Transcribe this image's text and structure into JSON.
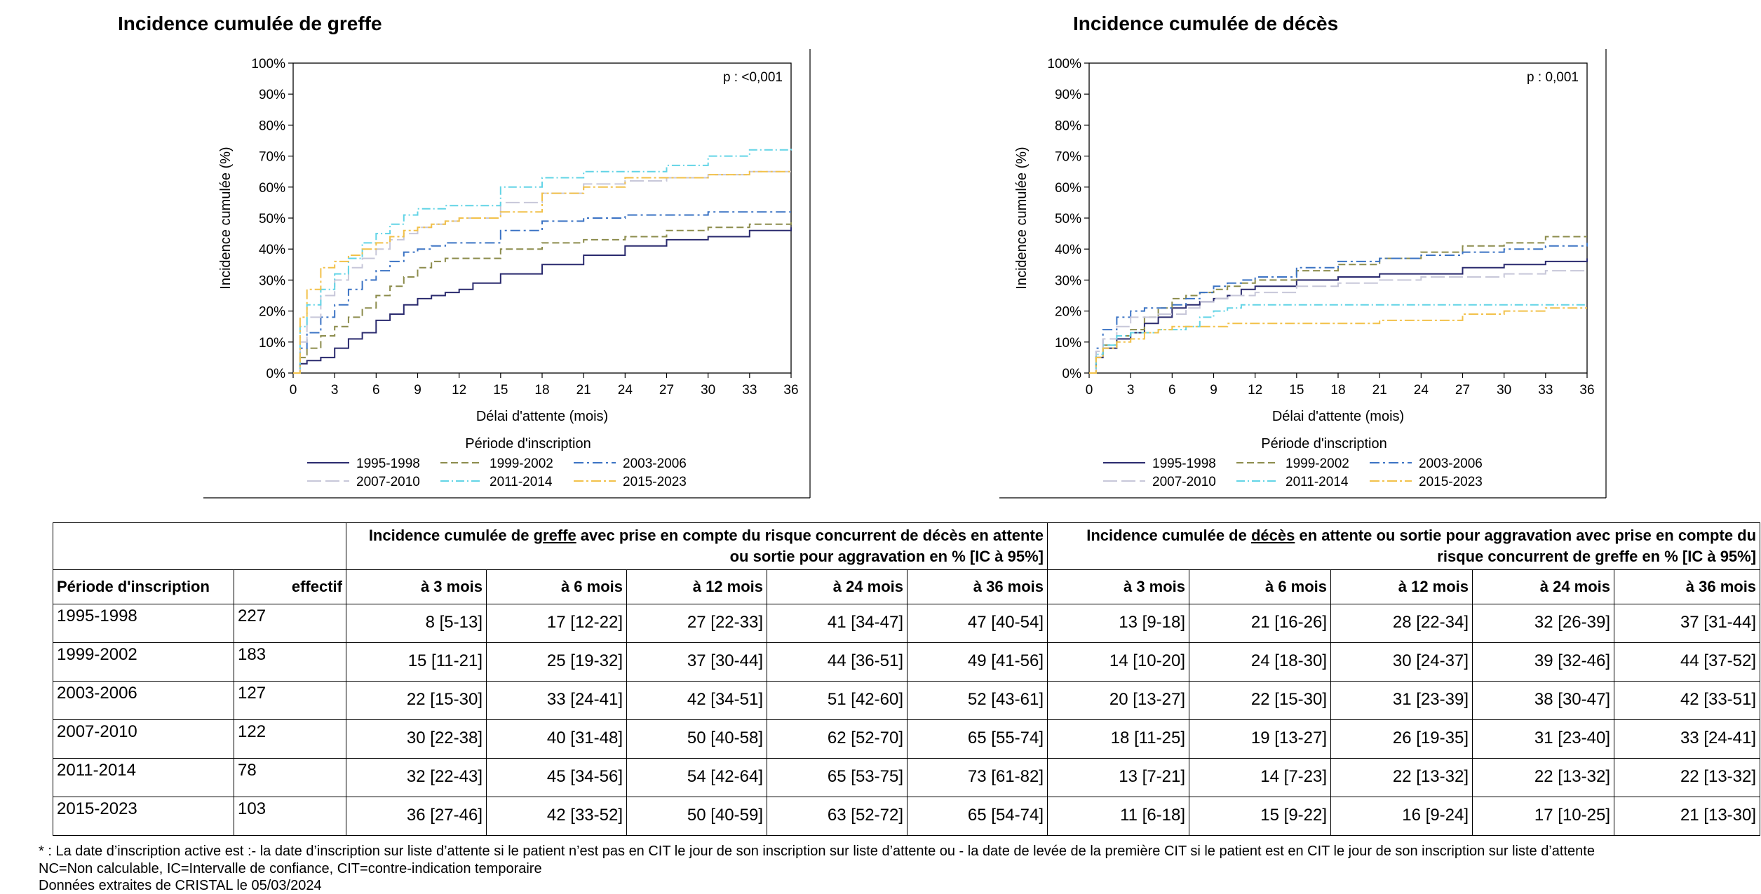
{
  "charts": [
    {
      "title": "Incidence cumulée de greffe",
      "pvalue": "p : <0,001"
    },
    {
      "title": "Incidence cumulée de décès",
      "pvalue": "p : 0,001"
    }
  ],
  "chart_data": [
    {
      "type": "line",
      "title": "Incidence cumulée de greffe",
      "xlabel": "Délai d'attente (mois)",
      "ylabel": "Incidence cumulée (%)",
      "xlim": [
        0,
        36
      ],
      "ylim": [
        0,
        100
      ],
      "x_ticks": [
        "0",
        "3",
        "6",
        "9",
        "12",
        "15",
        "18",
        "21",
        "24",
        "27",
        "30",
        "33",
        "36"
      ],
      "y_ticks": [
        "0%",
        "10%",
        "20%",
        "30%",
        "40%",
        "50%",
        "60%",
        "70%",
        "80%",
        "90%",
        "100%"
      ],
      "legend_title": "Période d'inscription",
      "legend_position": "bottom",
      "grid": false,
      "series": [
        {
          "name": "1995-1998",
          "color": "#2a2a6e",
          "dash": "",
          "x": [
            0,
            0.5,
            1,
            2,
            3,
            4,
            5,
            6,
            7,
            8,
            9,
            10,
            11,
            12,
            13,
            15,
            18,
            21,
            24,
            27,
            30,
            33,
            36
          ],
          "y": [
            0,
            3,
            4,
            5,
            8,
            11,
            13,
            17,
            19,
            22,
            24,
            25,
            26,
            27,
            29,
            32,
            35,
            38,
            41,
            43,
            44,
            46,
            47
          ]
        },
        {
          "name": "1999-2002",
          "color": "#8c8c4c",
          "dash": "10,5",
          "x": [
            0,
            0.5,
            1,
            2,
            3,
            4,
            5,
            6,
            7,
            8,
            9,
            10,
            11,
            12,
            15,
            18,
            21,
            24,
            27,
            30,
            33,
            36
          ],
          "y": [
            0,
            5,
            8,
            12,
            15,
            18,
            21,
            25,
            28,
            31,
            34,
            36,
            37,
            37,
            40,
            42,
            43,
            44,
            46,
            47,
            48,
            49
          ]
        },
        {
          "name": "2003-2006",
          "color": "#3b73c4",
          "dash": "14,5,3,5",
          "x": [
            0,
            0.5,
            1,
            2,
            3,
            4,
            5,
            6,
            7,
            8,
            9,
            10,
            11,
            12,
            15,
            18,
            21,
            24,
            27,
            30,
            33,
            36
          ],
          "y": [
            0,
            8,
            13,
            18,
            22,
            27,
            30,
            33,
            36,
            39,
            40,
            41,
            42,
            42,
            46,
            49,
            50,
            51,
            51,
            52,
            52,
            52
          ]
        },
        {
          "name": "2007-2010",
          "color": "#c7c7d9",
          "dash": "20,6",
          "x": [
            0,
            0.5,
            1,
            2,
            3,
            4,
            5,
            6,
            7,
            8,
            9,
            10,
            11,
            12,
            15,
            18,
            21,
            24,
            27,
            30,
            33,
            36
          ],
          "y": [
            0,
            10,
            18,
            25,
            30,
            34,
            37,
            40,
            43,
            45,
            47,
            48,
            49,
            50,
            55,
            58,
            61,
            62,
            63,
            64,
            65,
            65
          ]
        },
        {
          "name": "2011-2014",
          "color": "#62d4e6",
          "dash": "12,4,2,4",
          "x": [
            0,
            0.5,
            1,
            2,
            3,
            4,
            5,
            6,
            7,
            8,
            9,
            10,
            11,
            12,
            15,
            18,
            21,
            24,
            27,
            30,
            33,
            36
          ],
          "y": [
            0,
            15,
            22,
            27,
            32,
            37,
            42,
            45,
            48,
            51,
            53,
            53,
            54,
            54,
            60,
            63,
            65,
            65,
            67,
            70,
            72,
            73
          ]
        },
        {
          "name": "2015-2023",
          "color": "#f2c14a",
          "dash": "14,4,3,4",
          "x": [
            0,
            0.5,
            1,
            2,
            3,
            4,
            5,
            6,
            7,
            8,
            9,
            10,
            11,
            12,
            15,
            18,
            21,
            24,
            27,
            30,
            33,
            36
          ],
          "y": [
            0,
            18,
            27,
            34,
            36,
            38,
            40,
            42,
            44,
            46,
            47,
            48,
            49,
            50,
            52,
            58,
            60,
            63,
            63,
            64,
            65,
            65
          ]
        }
      ]
    },
    {
      "type": "line",
      "title": "Incidence cumulée de décès",
      "xlabel": "Délai d'attente (mois)",
      "ylabel": "Incidence cumulée (%)",
      "xlim": [
        0,
        36
      ],
      "ylim": [
        0,
        100
      ],
      "x_ticks": [
        "0",
        "3",
        "6",
        "9",
        "12",
        "15",
        "18",
        "21",
        "24",
        "27",
        "30",
        "33",
        "36"
      ],
      "y_ticks": [
        "0%",
        "10%",
        "20%",
        "30%",
        "40%",
        "50%",
        "60%",
        "70%",
        "80%",
        "90%",
        "100%"
      ],
      "legend_title": "Période d'inscription",
      "legend_position": "bottom",
      "grid": false,
      "series": [
        {
          "name": "1995-1998",
          "color": "#2a2a6e",
          "dash": "",
          "x": [
            0,
            0.5,
            1,
            2,
            3,
            4,
            5,
            6,
            7,
            8,
            9,
            10,
            11,
            12,
            15,
            18,
            21,
            24,
            27,
            30,
            33,
            36
          ],
          "y": [
            0,
            5,
            8,
            11,
            13,
            16,
            18,
            21,
            22,
            23,
            24,
            25,
            27,
            28,
            30,
            31,
            32,
            32,
            34,
            35,
            36,
            37
          ]
        },
        {
          "name": "1999-2002",
          "color": "#8c8c4c",
          "dash": "10,5",
          "x": [
            0,
            0.5,
            1,
            2,
            3,
            4,
            5,
            6,
            7,
            8,
            9,
            10,
            11,
            12,
            15,
            18,
            21,
            24,
            27,
            30,
            33,
            36
          ],
          "y": [
            0,
            5,
            9,
            12,
            14,
            18,
            21,
            24,
            25,
            26,
            27,
            28,
            29,
            30,
            33,
            35,
            37,
            39,
            41,
            42,
            44,
            44
          ]
        },
        {
          "name": "2003-2006",
          "color": "#3b73c4",
          "dash": "14,5,3,5",
          "x": [
            0,
            0.5,
            1,
            2,
            3,
            4,
            5,
            6,
            7,
            8,
            9,
            10,
            11,
            12,
            15,
            18,
            21,
            24,
            27,
            30,
            33,
            36
          ],
          "y": [
            0,
            8,
            14,
            18,
            20,
            21,
            21,
            22,
            24,
            26,
            28,
            29,
            30,
            31,
            34,
            36,
            37,
            38,
            39,
            40,
            41,
            42
          ]
        },
        {
          "name": "2007-2010",
          "color": "#c7c7d9",
          "dash": "20,6",
          "x": [
            0,
            0.5,
            1,
            2,
            3,
            4,
            5,
            6,
            7,
            8,
            9,
            10,
            11,
            12,
            15,
            18,
            21,
            24,
            27,
            30,
            33,
            36
          ],
          "y": [
            0,
            7,
            11,
            15,
            18,
            18,
            19,
            19,
            21,
            23,
            24,
            25,
            25,
            26,
            28,
            29,
            30,
            31,
            31,
            32,
            33,
            33
          ]
        },
        {
          "name": "2011-2014",
          "color": "#62d4e6",
          "dash": "12,4,2,4",
          "x": [
            0,
            0.5,
            1,
            2,
            3,
            4,
            5,
            6,
            7,
            8,
            9,
            10,
            11,
            12,
            15,
            18,
            21,
            24,
            27,
            30,
            33,
            36
          ],
          "y": [
            0,
            6,
            9,
            12,
            13,
            13,
            14,
            14,
            15,
            18,
            20,
            21,
            22,
            22,
            22,
            22,
            22,
            22,
            22,
            22,
            22,
            22
          ]
        },
        {
          "name": "2015-2023",
          "color": "#f2c14a",
          "dash": "14,4,3,4",
          "x": [
            0,
            0.5,
            1,
            2,
            3,
            4,
            5,
            6,
            7,
            8,
            9,
            10,
            11,
            12,
            15,
            18,
            21,
            24,
            27,
            30,
            33,
            36
          ],
          "y": [
            0,
            5,
            8,
            10,
            11,
            13,
            14,
            15,
            15,
            15,
            15,
            16,
            16,
            16,
            16,
            16,
            17,
            17,
            19,
            20,
            21,
            21
          ]
        }
      ]
    }
  ],
  "table": {
    "graft_header_pre": "Incidence cumulée de ",
    "graft_header_u": "greffe",
    "graft_header_post": " avec prise en compte du risque concurrent de décès en attente ou sortie pour aggravation en % [IC à 95%]",
    "death_header_pre": "Incidence cumulée de ",
    "death_header_u": "décès",
    "death_header_post": " en attente ou sortie pour aggravation avec prise en compte du risque concurrent de greffe en % [IC à 95%]",
    "col_period": "Période d'inscription",
    "col_effectif": "effectif",
    "time_cols": [
      "à 3 mois",
      "à 6 mois",
      "à 12 mois",
      "à 24 mois",
      "à 36 mois"
    ],
    "rows": [
      {
        "period": "1995-1998",
        "n": "227",
        "graft": [
          "8 [5-13]",
          "17 [12-22]",
          "27 [22-33]",
          "41 [34-47]",
          "47 [40-54]"
        ],
        "death": [
          "13 [9-18]",
          "21 [16-26]",
          "28 [22-34]",
          "32 [26-39]",
          "37 [31-44]"
        ]
      },
      {
        "period": "1999-2002",
        "n": "183",
        "graft": [
          "15 [11-21]",
          "25 [19-32]",
          "37 [30-44]",
          "44 [36-51]",
          "49 [41-56]"
        ],
        "death": [
          "14 [10-20]",
          "24 [18-30]",
          "30 [24-37]",
          "39 [32-46]",
          "44 [37-52]"
        ]
      },
      {
        "period": "2003-2006",
        "n": "127",
        "graft": [
          "22 [15-30]",
          "33 [24-41]",
          "42 [34-51]",
          "51 [42-60]",
          "52 [43-61]"
        ],
        "death": [
          "20 [13-27]",
          "22 [15-30]",
          "31 [23-39]",
          "38 [30-47]",
          "42 [33-51]"
        ]
      },
      {
        "period": "2007-2010",
        "n": "122",
        "graft": [
          "30 [22-38]",
          "40 [31-48]",
          "50 [40-58]",
          "62 [52-70]",
          "65 [55-74]"
        ],
        "death": [
          "18 [11-25]",
          "19 [13-27]",
          "26 [19-35]",
          "31 [23-40]",
          "33 [24-41]"
        ]
      },
      {
        "period": "2011-2014",
        "n": "78",
        "graft": [
          "32 [22-43]",
          "45 [34-56]",
          "54 [42-64]",
          "65 [53-75]",
          "73 [61-82]"
        ],
        "death": [
          "13 [7-21]",
          "14 [7-23]",
          "22 [13-32]",
          "22 [13-32]",
          "22 [13-32]"
        ]
      },
      {
        "period": "2015-2023",
        "n": "103",
        "graft": [
          "36 [27-46]",
          "42 [33-52]",
          "50 [40-59]",
          "63 [52-72]",
          "65 [54-74]"
        ],
        "death": [
          "11 [6-18]",
          "15 [9-22]",
          "16 [9-24]",
          "17 [10-25]",
          "21 [13-30]"
        ]
      }
    ]
  },
  "footnotes": [
    "*  : La date d’inscription active est :- la date d’inscription sur liste d’attente si le patient n’est pas en CIT le jour de son inscription sur liste d’attente ou - la date de levée de la première CIT si le patient est en CIT le jour de son inscription sur liste d’attente",
    "NC=Non calculable, IC=Intervalle de confiance, CIT=contre-indication temporaire",
    "Données extraites de CRISTAL le 05/03/2024"
  ]
}
